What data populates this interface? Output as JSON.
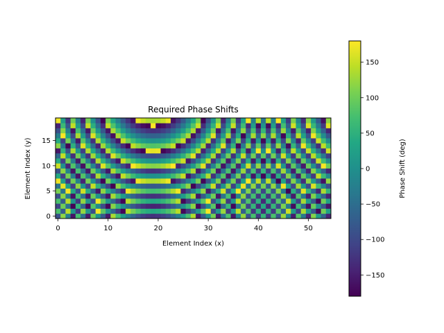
{
  "chart_data": {
    "type": "heatmap",
    "title": "Required Phase Shifts",
    "xlabel": "Element Index (x)",
    "ylabel": "Element Index (y)",
    "nx": 55,
    "ny": 20,
    "x_ticks": [
      0,
      10,
      20,
      30,
      40,
      50
    ],
    "y_ticks": [
      0,
      5,
      10,
      15
    ],
    "origin": "lower",
    "colormap": "viridis",
    "colorbar": {
      "label": "Phase Shift (deg)",
      "range": [
        -180,
        180
      ],
      "ticks": [
        -150,
        -100,
        -50,
        0,
        50,
        100,
        150
      ],
      "tick_labels": [
        "−150",
        "−100",
        "−50",
        "0",
        "50",
        "100",
        "150"
      ]
    },
    "model": {
      "description_of_values": "phase wraps into [-180, 180] degrees",
      "focus_x": 18,
      "focus_y": 24,
      "radial_deg_per_element2": 4.1,
      "wrap_phase_offset_deg": 180,
      "x_ramp_deg_per_element": -8.1
    }
  }
}
